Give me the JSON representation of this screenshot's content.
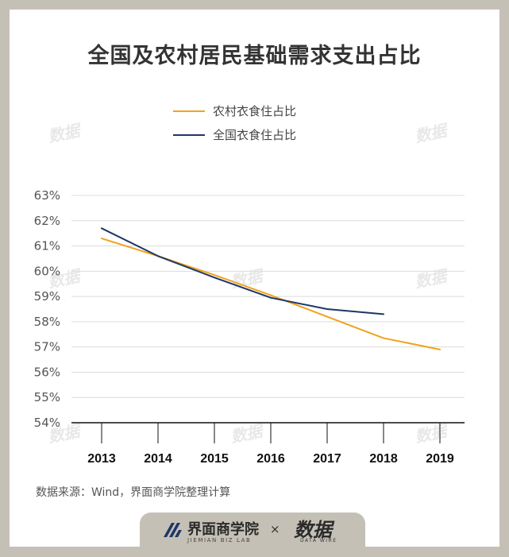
{
  "title": "全国及农村居民基础需求支出占比",
  "source": "数据来源：Wind，界面商学院整理计算",
  "watermark": "数据",
  "branding": {
    "left_cn": "界面商学院",
    "left_en": "JIEMIAN BIZ LAB",
    "separator": "×",
    "right_cn": "数据",
    "right_en": "DATA WIRE"
  },
  "colors": {
    "rural": "#f0a31c",
    "national": "#1d3766"
  },
  "chart_data": {
    "type": "line",
    "title": "全国及农村居民基础需求支出占比",
    "x": [
      "2013",
      "2014",
      "2015",
      "2016",
      "2017",
      "2018",
      "2019"
    ],
    "ylim": [
      54,
      63
    ],
    "yticks": [
      "63%",
      "62%",
      "61%",
      "60%",
      "59%",
      "58%",
      "57%",
      "56%",
      "55%",
      "54%"
    ],
    "grid": true,
    "legend": "top-center",
    "series": [
      {
        "name": "农村衣食住占比",
        "color": "#f0a31c",
        "values": [
          61.3,
          60.6,
          59.85,
          59.05,
          58.2,
          57.35,
          56.9
        ]
      },
      {
        "name": "全国衣食住占比",
        "color": "#1d3766",
        "values": [
          61.7,
          60.6,
          59.75,
          58.95,
          58.5,
          58.3,
          null
        ]
      }
    ]
  }
}
